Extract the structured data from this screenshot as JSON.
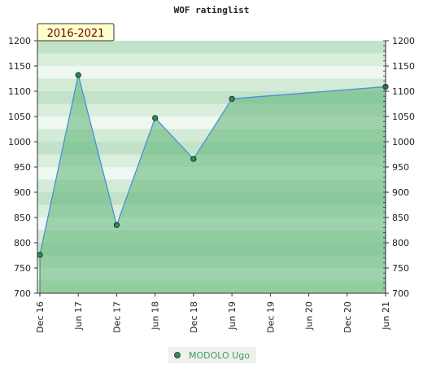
{
  "chart_data": {
    "type": "area",
    "title": "WOF ratinglist",
    "period_label": "2016-2021",
    "x_tick_labels": [
      "Dec 16",
      "Jun 17",
      "Dec 17",
      "Jun 18",
      "Dec 18",
      "Jun 19",
      "Dec 19",
      "Jun 20",
      "Dec 20",
      "Jun 21"
    ],
    "y_ticks": [
      700,
      750,
      800,
      850,
      900,
      950,
      1000,
      1050,
      1100,
      1150,
      1200
    ],
    "ylim": [
      700,
      1200
    ],
    "grid": true,
    "legend_position": "bottom-center",
    "series": [
      {
        "name": "MODOLO Ugo",
        "x": [
          "Dec 16",
          "Jun 17",
          "Dec 17",
          "Jun 18",
          "Dec 18",
          "Jun 19",
          "Jun 21"
        ],
        "values": [
          776,
          1132,
          835,
          1047,
          966,
          1085,
          1109
        ],
        "color": "#4a90d9",
        "marker_color": "#2e8b57",
        "fill_color": "#5cb574"
      }
    ]
  }
}
